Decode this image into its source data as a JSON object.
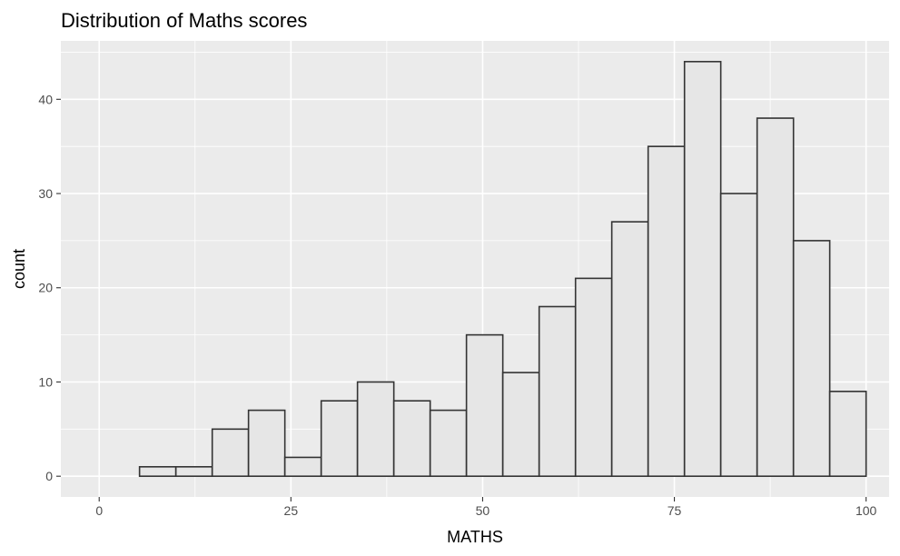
{
  "chart_data": {
    "type": "bar",
    "title": "Distribution of Maths scores",
    "xlabel": "MATHS",
    "ylabel": "count",
    "xlim": [
      -5,
      103
    ],
    "ylim": [
      -2.2,
      46.2
    ],
    "x_ticks": [
      0,
      25,
      50,
      75,
      100
    ],
    "x_tick_labels": [
      "0",
      "25",
      "50",
      "75",
      "100"
    ],
    "y_ticks": [
      0,
      10,
      20,
      30,
      40
    ],
    "y_tick_labels": [
      "0",
      "10",
      "20",
      "30",
      "40"
    ],
    "grid": true,
    "bin_width": 4.737,
    "bins": [
      {
        "x0": 5.26,
        "x1": 10.0,
        "count": 1
      },
      {
        "x0": 10.0,
        "x1": 14.74,
        "count": 1
      },
      {
        "x0": 14.74,
        "x1": 19.47,
        "count": 5
      },
      {
        "x0": 19.47,
        "x1": 24.21,
        "count": 7
      },
      {
        "x0": 24.21,
        "x1": 28.95,
        "count": 2
      },
      {
        "x0": 28.95,
        "x1": 33.68,
        "count": 8
      },
      {
        "x0": 33.68,
        "x1": 38.42,
        "count": 10
      },
      {
        "x0": 38.42,
        "x1": 43.16,
        "count": 8
      },
      {
        "x0": 43.16,
        "x1": 47.89,
        "count": 7
      },
      {
        "x0": 47.89,
        "x1": 52.63,
        "count": 15
      },
      {
        "x0": 52.63,
        "x1": 57.37,
        "count": 11
      },
      {
        "x0": 57.37,
        "x1": 62.11,
        "count": 18
      },
      {
        "x0": 62.11,
        "x1": 66.84,
        "count": 21
      },
      {
        "x0": 66.84,
        "x1": 71.58,
        "count": 27
      },
      {
        "x0": 71.58,
        "x1": 76.32,
        "count": 35
      },
      {
        "x0": 76.32,
        "x1": 81.05,
        "count": 44
      },
      {
        "x0": 81.05,
        "x1": 85.79,
        "count": 30
      },
      {
        "x0": 85.79,
        "x1": 90.53,
        "count": 38
      },
      {
        "x0": 90.53,
        "x1": 95.26,
        "count": 25
      },
      {
        "x0": 95.26,
        "x1": 100.0,
        "count": 9
      }
    ],
    "colors": {
      "panel_background": "#ebebeb",
      "grid": "#ffffff",
      "bar_fill": "#e6e6e6",
      "bar_outline": "#333333",
      "tick_label": "#4d4d4d"
    }
  }
}
